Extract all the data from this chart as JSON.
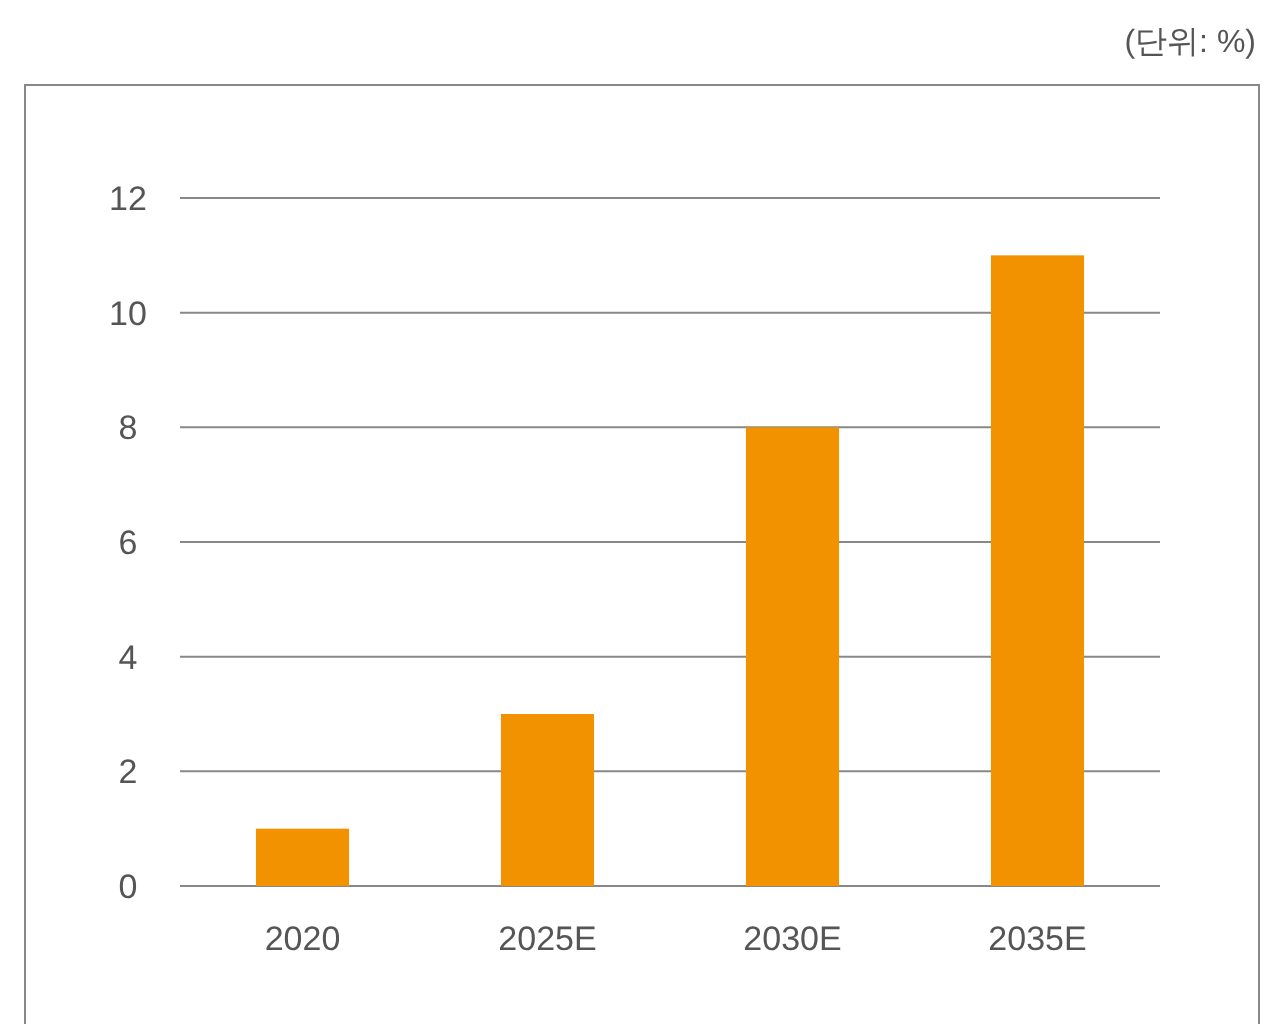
{
  "chart_data": {
    "type": "bar",
    "annotations": [
      "(단위: %)"
    ],
    "categories": [
      "2020",
      "2025E",
      "2030E",
      "2035E"
    ],
    "values": [
      1,
      3,
      8,
      11
    ],
    "color": "#f39200",
    "ylim": [
      0,
      12
    ],
    "yticks": [
      0,
      2,
      4,
      6,
      8,
      10,
      12
    ],
    "grid": "y"
  }
}
